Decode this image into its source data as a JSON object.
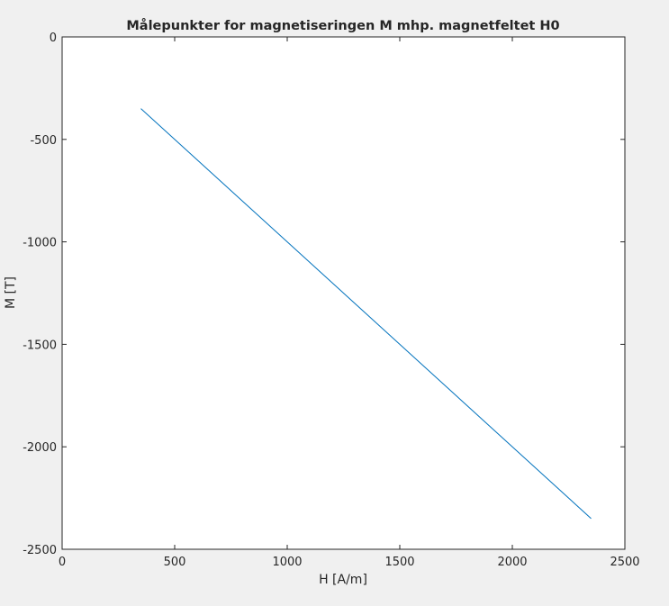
{
  "chart_data": {
    "type": "line",
    "title": "Målepunkter for magnetiseringen M mhp. magnetfeltet H0",
    "xlabel": "H [A/m]",
    "ylabel": "M [T]",
    "xlim": [
      0,
      2500
    ],
    "ylim": [
      -2500,
      0
    ],
    "xticks": [
      0,
      500,
      1000,
      1500,
      2000,
      2500
    ],
    "yticks": [
      0,
      -500,
      -1000,
      -1500,
      -2000,
      -2500
    ],
    "xtick_labels": [
      "0",
      "500",
      "1000",
      "1500",
      "2000",
      "2500"
    ],
    "ytick_labels": [
      "0",
      "-500",
      "-1000",
      "-1500",
      "-2000",
      "-2500"
    ],
    "grid": false,
    "series": [
      {
        "color": "#0072bd",
        "x": [
          350,
          2350
        ],
        "y": [
          -350,
          -2350
        ]
      }
    ]
  }
}
